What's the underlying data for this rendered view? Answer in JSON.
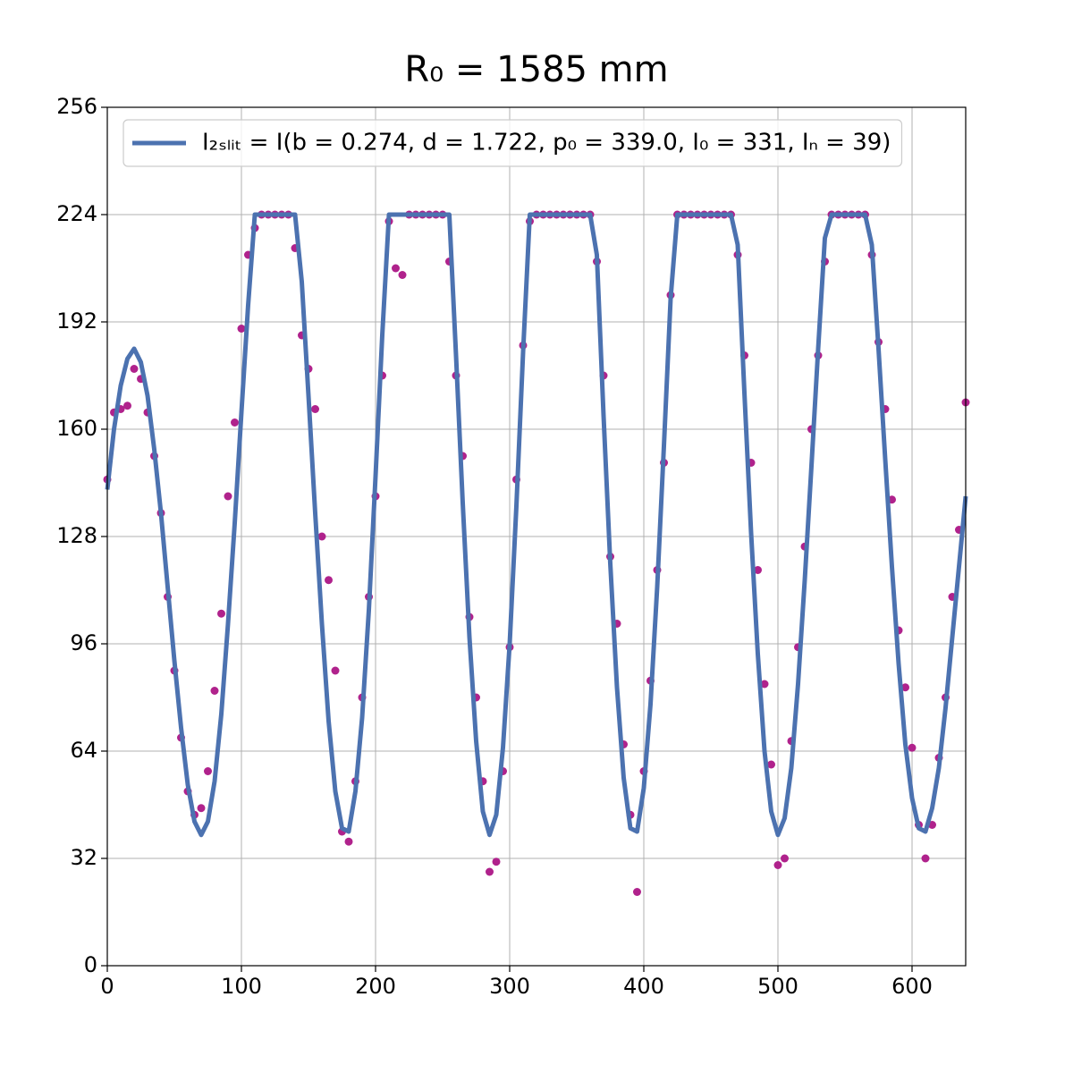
{
  "chart_data": {
    "type": "line",
    "title": "R₀ = 1585 mm",
    "xlim": [
      0,
      640
    ],
    "ylim": [
      0,
      256
    ],
    "xticks": [
      0,
      100,
      200,
      300,
      400,
      500,
      600
    ],
    "yticks": [
      0,
      32,
      64,
      96,
      128,
      160,
      192,
      224,
      256
    ],
    "grid": true,
    "legend": "upper left",
    "x": [
      0,
      5,
      10,
      15,
      20,
      25,
      30,
      35,
      40,
      45,
      50,
      55,
      60,
      65,
      70,
      75,
      80,
      85,
      90,
      95,
      100,
      105,
      110,
      115,
      120,
      125,
      130,
      135,
      140,
      145,
      150,
      155,
      160,
      165,
      170,
      175,
      180,
      185,
      190,
      195,
      200,
      205,
      210,
      215,
      220,
      225,
      230,
      235,
      240,
      245,
      250,
      255,
      260,
      265,
      270,
      275,
      280,
      285,
      290,
      295,
      300,
      305,
      310,
      315,
      320,
      325,
      330,
      335,
      340,
      345,
      350,
      355,
      360,
      365,
      370,
      375,
      380,
      385,
      390,
      395,
      400,
      405,
      410,
      415,
      420,
      425,
      430,
      435,
      440,
      445,
      450,
      455,
      460,
      465,
      470,
      475,
      480,
      485,
      490,
      495,
      500,
      505,
      510,
      515,
      520,
      525,
      530,
      535,
      540,
      545,
      550,
      555,
      560,
      565,
      570,
      575,
      580,
      585,
      590,
      595,
      600,
      605,
      610,
      615,
      620,
      625,
      630,
      635,
      640
    ],
    "series": [
      {
        "name": "I₂ₛₗᵢₜ = I(b = 0.274, d = 1.722, p₀ = 339.0, I₀ = 331, Iₙ = 39)",
        "type": "line",
        "color": "#4c72b0",
        "values": [
          142,
          160,
          173,
          181,
          184,
          180,
          170,
          154,
          135,
          113,
          91,
          71,
          54,
          43,
          39,
          43,
          55,
          75,
          102,
          132,
          165,
          197,
          224,
          224,
          224,
          224,
          224,
          224,
          224,
          204,
          170,
          135,
          102,
          73,
          52,
          41,
          40,
          52,
          74,
          106,
          146,
          188,
          224,
          224,
          224,
          224,
          224,
          224,
          224,
          224,
          224,
          224,
          182,
          138,
          98,
          67,
          46,
          39,
          45,
          65,
          96,
          137,
          183,
          224,
          224,
          224,
          224,
          224,
          224,
          224,
          224,
          224,
          224,
          212,
          164,
          120,
          83,
          56,
          41,
          40,
          53,
          78,
          113,
          155,
          199,
          224,
          224,
          224,
          224,
          224,
          224,
          224,
          224,
          224,
          215,
          171,
          129,
          93,
          64,
          46,
          39,
          44,
          59,
          84,
          115,
          149,
          184,
          217,
          224,
          224,
          224,
          224,
          224,
          224,
          215,
          184,
          151,
          119,
          90,
          66,
          50,
          41,
          40,
          47,
          59,
          77,
          98,
          119,
          140
        ]
      },
      {
        "type": "scatter",
        "color": "#b0228c",
        "values": [
          145,
          165,
          166,
          167,
          178,
          175,
          165,
          152,
          135,
          110,
          88,
          68,
          52,
          45,
          47,
          58,
          82,
          105,
          140,
          162,
          190,
          212,
          220,
          224,
          224,
          224,
          224,
          224,
          214,
          188,
          178,
          166,
          128,
          115,
          88,
          40,
          37,
          55,
          80,
          110,
          140,
          176,
          222,
          208,
          206,
          224,
          224,
          224,
          224,
          224,
          224,
          210,
          176,
          152,
          104,
          80,
          55,
          28,
          31,
          58,
          95,
          145,
          185,
          222,
          224,
          224,
          224,
          224,
          224,
          224,
          224,
          224,
          224,
          210,
          176,
          122,
          102,
          66,
          45,
          22,
          58,
          85,
          118,
          150,
          200,
          224,
          224,
          224,
          224,
          224,
          224,
          224,
          224,
          224,
          212,
          182,
          150,
          118,
          84,
          60,
          30,
          32,
          67,
          95,
          125,
          160,
          182,
          210,
          224,
          224,
          224,
          224,
          224,
          224,
          212,
          186,
          166,
          139,
          100,
          83,
          65,
          42,
          32,
          42,
          62,
          80,
          110,
          130,
          168
        ]
      }
    ]
  }
}
